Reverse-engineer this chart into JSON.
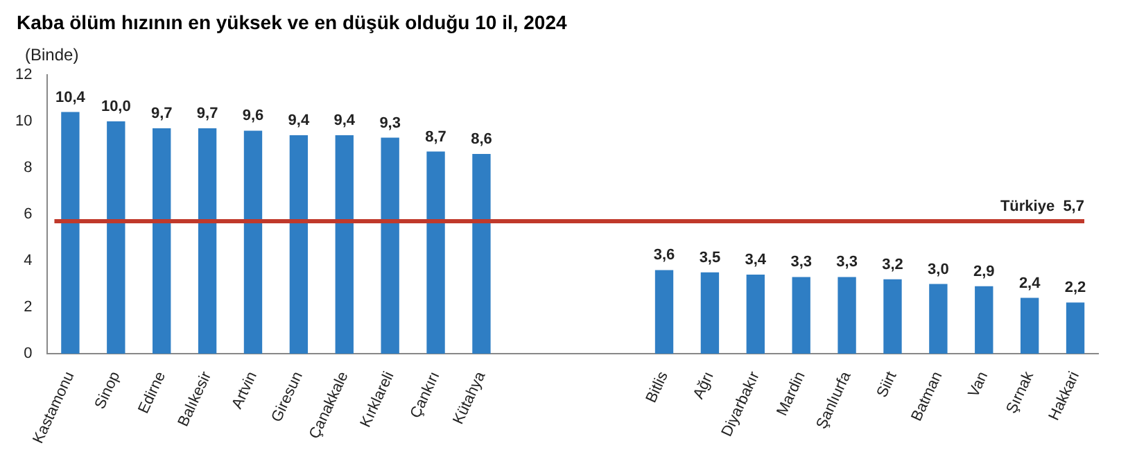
{
  "chart_data": {
    "type": "bar",
    "title": "Kaba ölüm hızının en yüksek ve en düşük olduğu 10 il, 2024",
    "ylabel": "(Binde)",
    "categories": [
      "Kastamonu",
      "Sinop",
      "Edirne",
      "Balıkesir",
      "Artvin",
      "Giresun",
      "Çanakkale",
      "Kırklareli",
      "Çankırı",
      "Kütahya",
      null,
      null,
      null,
      "Bitlis",
      "Ağrı",
      "Diyarbakır",
      "Mardin",
      "Şanlıurfa",
      "Siirt",
      "Batman",
      "Van",
      "Şırnak",
      "Hakkari"
    ],
    "values": [
      10.4,
      10.0,
      9.7,
      9.7,
      9.6,
      9.4,
      9.4,
      9.3,
      8.7,
      8.6,
      null,
      null,
      null,
      3.6,
      3.5,
      3.4,
      3.3,
      3.3,
      3.2,
      3.0,
      2.9,
      2.4,
      2.2
    ],
    "value_labels": [
      "10,4",
      "10,0",
      "9,7",
      "9,7",
      "9,6",
      "9,4",
      "9,4",
      "9,3",
      "8,7",
      "8,6",
      null,
      null,
      null,
      "3,6",
      "3,5",
      "3,4",
      "3,3",
      "3,3",
      "3,2",
      "3,0",
      "2,9",
      "2,4",
      "2,2"
    ],
    "color": "#2f7ec4",
    "ylim": [
      0,
      12
    ],
    "yticks": [
      0,
      2,
      4,
      6,
      8,
      10,
      12
    ],
    "grid": false,
    "legend": false,
    "ref_lines": [
      {
        "axis": "y",
        "value": 5.7,
        "label": "Türkiye  5,7",
        "color": "#c0392b"
      }
    ]
  }
}
